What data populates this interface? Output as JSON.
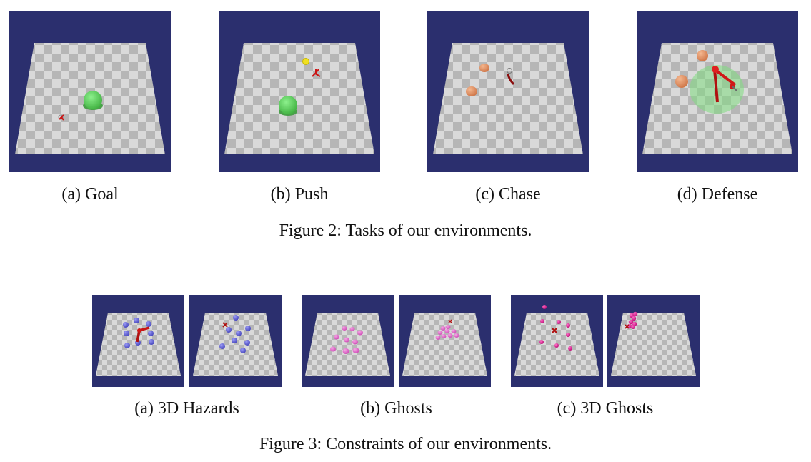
{
  "figure2": {
    "caption": "Figure 2: Tasks of our environments.",
    "panels": [
      {
        "label": "(a) Goal"
      },
      {
        "label": "(b) Push"
      },
      {
        "label": "(c) Chase"
      },
      {
        "label": "(d) Defense"
      }
    ]
  },
  "figure3": {
    "caption": "Figure 3: Constraints of our environments.",
    "groups": [
      {
        "label": "(a) 3D Hazards"
      },
      {
        "label": "(b) Ghosts"
      },
      {
        "label": "(c) 3D Ghosts"
      }
    ]
  },
  "colors": {
    "sky": "#2b2f6e",
    "floor_light": "#d8d8d8",
    "floor_dark": "#b4b4b4",
    "goal": "#5fd35f",
    "hazard": "#6e6ee0",
    "ghost": "#e070d0",
    "ghost3d": "#e0209a",
    "agent": "#cc1515",
    "orange": "#e5966a",
    "ball": "#f0e020"
  },
  "icons": [
    "robot-agent-icon",
    "goal-cylinder-icon",
    "push-ball-icon",
    "hazard-sphere-icon",
    "ghost-icon"
  ]
}
